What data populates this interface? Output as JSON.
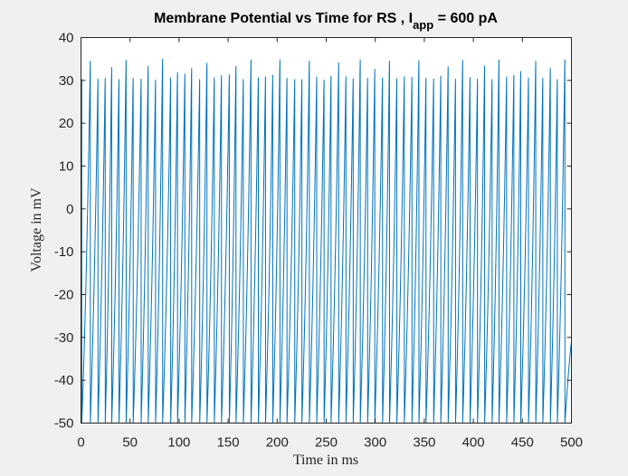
{
  "chart_data": {
    "type": "line",
    "title": "Membrane Potential vs Time for  RS , I",
    "title_subscript": "app",
    "title_suffix": " =  600  pA",
    "xlabel": "Time in ms",
    "ylabel": "Voltage in mV",
    "xlim": [
      0,
      500
    ],
    "ylim": [
      -50,
      40
    ],
    "xticks": [
      0,
      50,
      100,
      150,
      200,
      250,
      300,
      350,
      400,
      450,
      500
    ],
    "yticks": [
      -50,
      -40,
      -30,
      -20,
      -10,
      0,
      10,
      20,
      30,
      40
    ],
    "grid": false,
    "series_color": "#0072BD",
    "reset_voltage": -50,
    "spike_times": [
      0.8,
      9.5,
      17.3,
      24.7,
      31.3,
      38.7,
      46.0,
      53.2,
      61.3,
      68.5,
      76.0,
      83.2,
      91.4,
      98.4,
      105.9,
      112.8,
      121.0,
      128.4,
      135.9,
      143.2,
      151.2,
      158.0,
      165.5,
      173.3,
      180.8,
      188.1,
      195.5,
      202.8,
      210.0,
      217.9,
      225.2,
      232.8,
      240.3,
      247.8,
      254.9,
      262.7,
      270.1,
      277.5,
      284.7,
      292.2,
      299.5,
      307.4,
      314.5,
      322.0,
      329.6,
      337.4,
      344.5,
      351.7,
      359.5,
      366.8,
      374.3,
      381.8,
      389.1,
      396.6,
      404.2,
      411.5,
      419.1,
      426.1,
      433.9,
      441.3,
      448.3,
      456.2,
      463.6,
      470.8,
      478.5,
      485.6,
      493.3
    ],
    "spike_peaks": [
      30.2,
      34.5,
      30.3,
      30.5,
      33.0,
      30.2,
      34.7,
      30.5,
      30.3,
      33.3,
      30.1,
      35.0,
      30.6,
      31.8,
      31.5,
      32.8,
      30.2,
      34.0,
      30.6,
      31.1,
      31.3,
      33.3,
      30.2,
      34.8,
      30.6,
      30.8,
      31.2,
      34.8,
      30.5,
      30.2,
      30.2,
      34.5,
      30.8,
      30.1,
      31.0,
      34.1,
      30.8,
      30.4,
      34.8,
      30.5,
      32.6,
      30.6,
      34.5,
      30.4,
      30.9,
      30.7,
      34.6,
      30.5,
      30.3,
      31.0,
      33.2,
      30.3,
      34.7,
      30.7,
      30.3,
      33.4,
      30.2,
      34.8,
      30.8,
      31.2,
      32.1,
      30.6,
      34.5,
      30.5,
      32.8,
      30.2,
      34.8
    ],
    "end_point": [
      500,
      -31
    ]
  }
}
